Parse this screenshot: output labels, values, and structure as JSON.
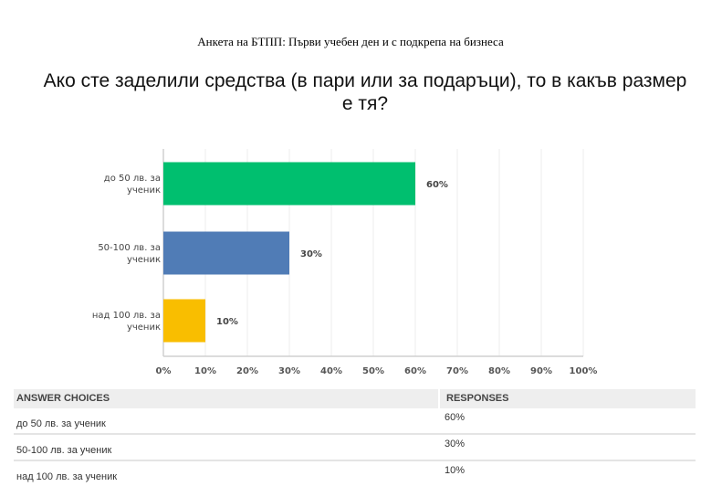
{
  "survey_title": "Анкета на БТПП: Първи учебен ден и с подкрепа на бизнеса",
  "question": "Ако сте заделили средства (в пари или за подаръци), то в какъв размер е тя?",
  "chart_data": {
    "type": "bar",
    "orientation": "horizontal",
    "categories": [
      [
        "до 50 лв. за",
        "ученик"
      ],
      [
        "50-100 лв. за",
        "ученик"
      ],
      [
        "над 100 лв. за",
        "ученик"
      ]
    ],
    "values": [
      60,
      30,
      10
    ],
    "data_labels": [
      "60%",
      "30%",
      "10%"
    ],
    "colors": [
      "#00bf6f",
      "#507cb6",
      "#f9be00"
    ],
    "xlim": [
      0,
      100
    ],
    "x_ticks": [
      "0%",
      "10%",
      "20%",
      "30%",
      "40%",
      "50%",
      "60%",
      "70%",
      "80%",
      "90%",
      "100%"
    ],
    "grid": true
  },
  "table": {
    "headers": [
      "ANSWER CHOICES",
      "RESPONSES"
    ],
    "rows": [
      {
        "choice": "до 50 лв. за  ученик",
        "response": "60%"
      },
      {
        "choice": "50-100 лв. за ученик",
        "response": "30%"
      },
      {
        "choice": "над 100 лв. за ученик",
        "response": "10%"
      }
    ]
  }
}
